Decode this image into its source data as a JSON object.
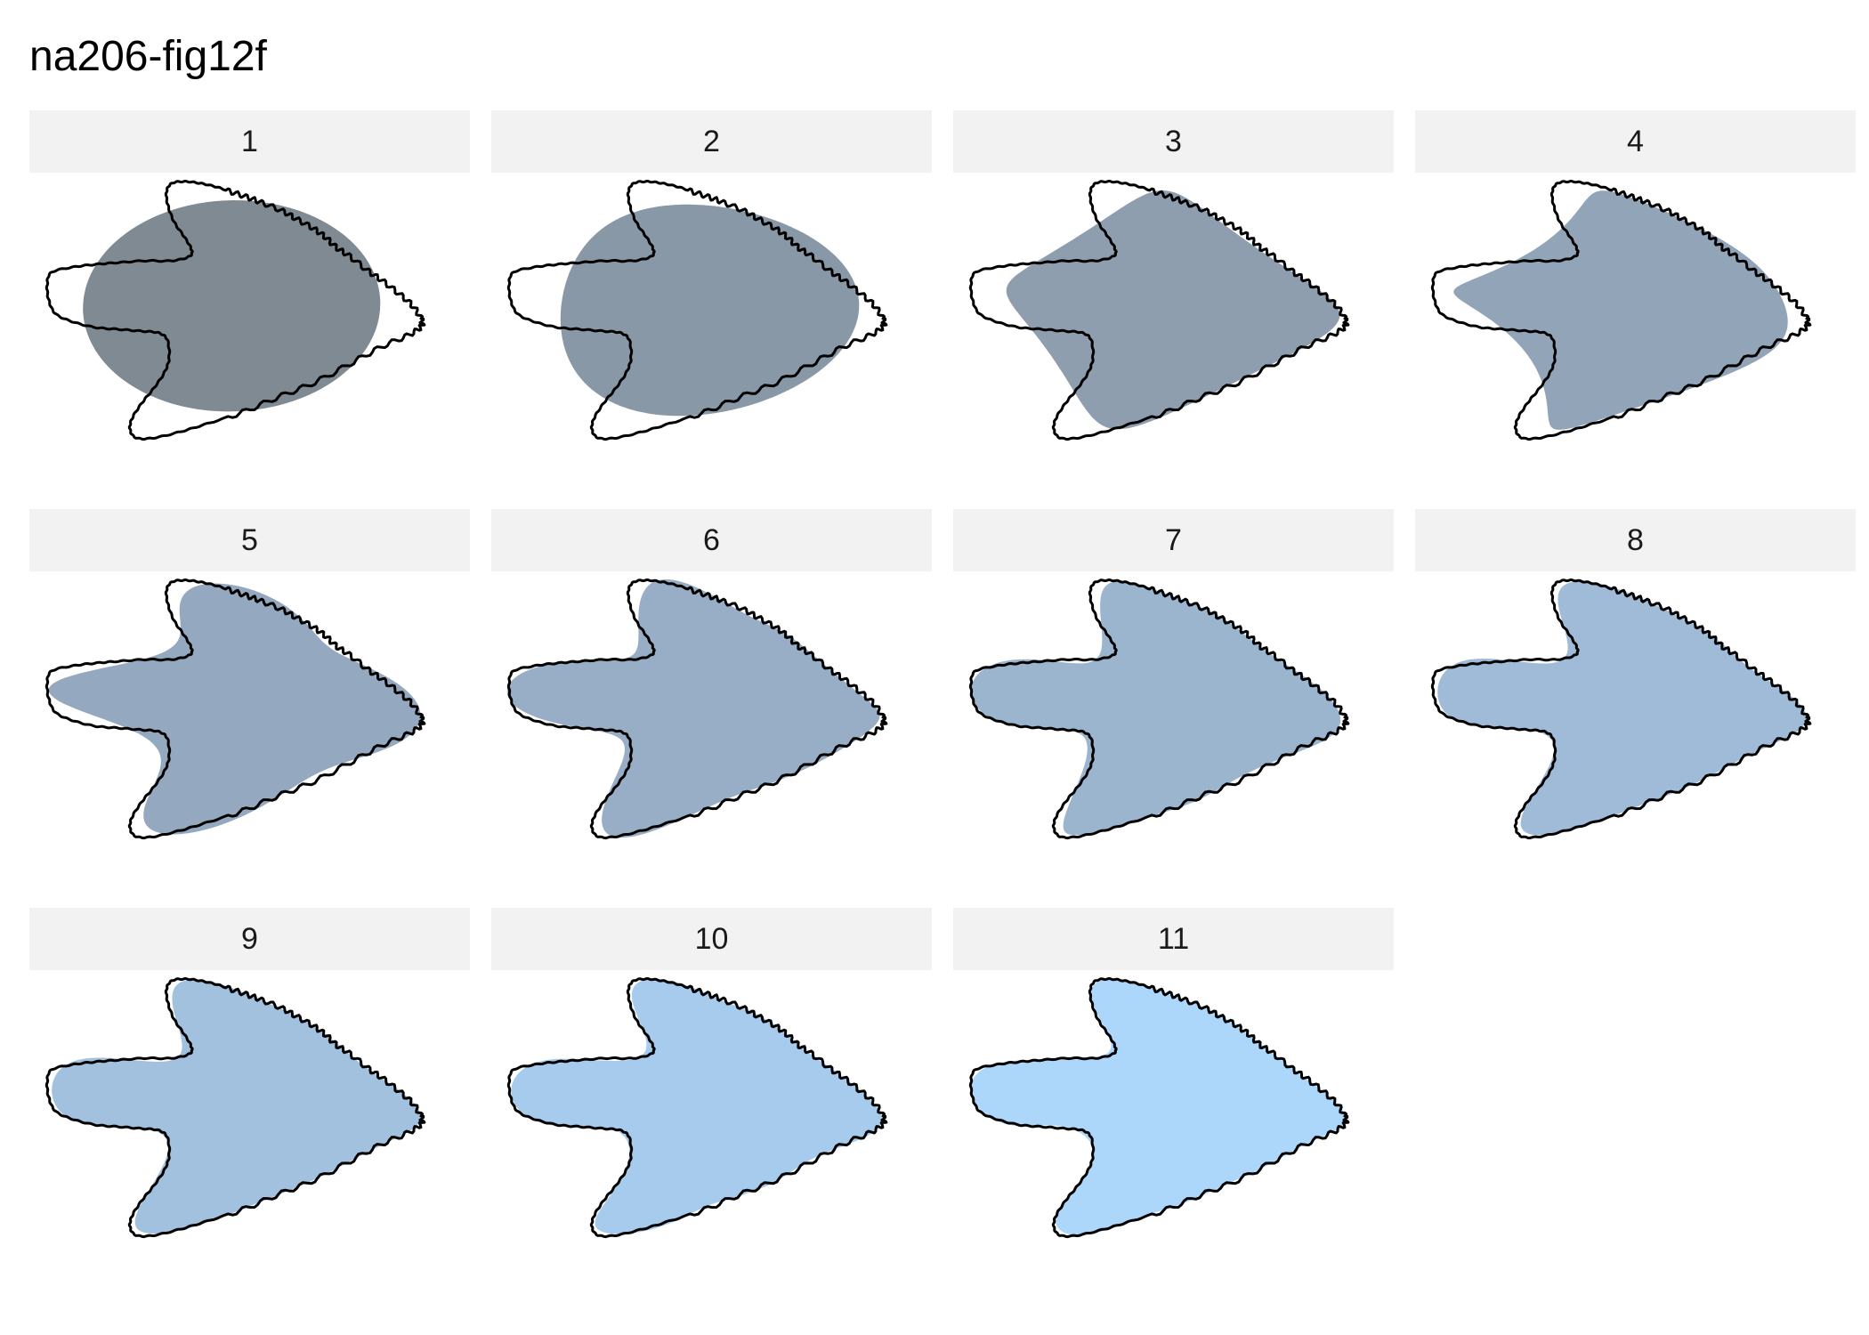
{
  "title": "na206-fig12f",
  "panels": [
    {
      "label": "1",
      "harmonics": 1,
      "fill": "#808a93"
    },
    {
      "label": "2",
      "harmonics": 2,
      "fill": "#8898a6"
    },
    {
      "label": "3",
      "harmonics": 3,
      "fill": "#8e9eaf"
    },
    {
      "label": "4",
      "harmonics": 4,
      "fill": "#91a4b8"
    },
    {
      "label": "5",
      "harmonics": 5,
      "fill": "#94a9bf"
    },
    {
      "label": "6",
      "harmonics": 6,
      "fill": "#97aec6"
    },
    {
      "label": "7",
      "harmonics": 7,
      "fill": "#9bb5cf"
    },
    {
      "label": "8",
      "harmonics": 8,
      "fill": "#9fbbd8"
    },
    {
      "label": "9",
      "harmonics": 9,
      "fill": "#a2c1df"
    },
    {
      "label": "10",
      "harmonics": 10,
      "fill": "#a7cbec"
    },
    {
      "label": "11",
      "harmonics": 11,
      "fill": "#acd7fa"
    }
  ]
}
